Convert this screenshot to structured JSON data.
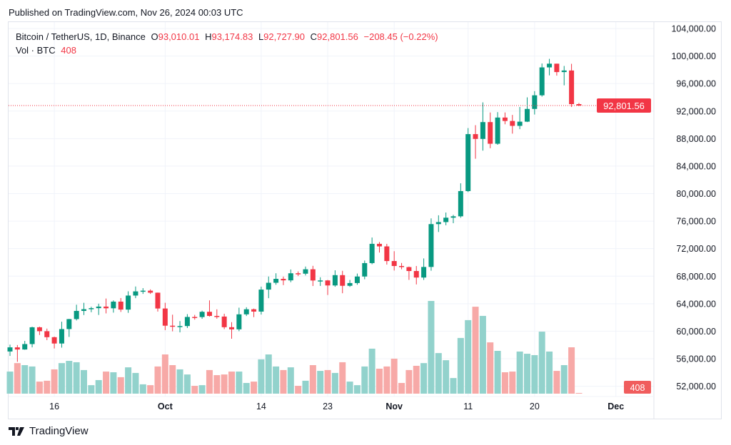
{
  "header": {
    "published": "Published on TradingView.com, Nov 26, 2024 00:03 UTC"
  },
  "legend": {
    "symbol": "Bitcoin / TetherUS, 1D, Binance",
    "o_label": "O",
    "o": "93,010.01",
    "h_label": "H",
    "h": "93,174.83",
    "l_label": "L",
    "l": "92,727.90",
    "c_label": "C",
    "c": "92,801.56",
    "change": "−208.45 (−0.22%)",
    "vol_label": "Vol · BTC",
    "vol": "408"
  },
  "price_tag": "92,801.56",
  "volume_tag": "408",
  "footer": {
    "brand": "TradingView"
  },
  "colors": {
    "up": "#089981",
    "down": "#f23645",
    "up_volume": "#92d2cc",
    "down_volume": "#f7a9a7",
    "grid": "#f0f3fa"
  },
  "chart_data": {
    "type": "candlestick",
    "title": "Bitcoin / TetherUS, 1D, Binance",
    "ylim": [
      50000,
      104000
    ],
    "y_ticks": [
      "104,000.00",
      "100,000.00",
      "96,000.00",
      "92,000.00",
      "88,000.00",
      "84,000.00",
      "80,000.00",
      "76,000.00",
      "72,000.00",
      "68,000.00",
      "64,000.00",
      "60,000.00",
      "56,000.00",
      "52,000.00"
    ],
    "y_tick_values": [
      104000,
      100000,
      96000,
      92000,
      88000,
      84000,
      80000,
      76000,
      72000,
      68000,
      64000,
      60000,
      56000,
      52000
    ],
    "x_ticks": [
      {
        "label": "16",
        "date": "Sep 16"
      },
      {
        "label": "Oct",
        "date": "Oct 1"
      },
      {
        "label": "14",
        "date": "Oct 14"
      },
      {
        "label": "23",
        "date": "Oct 23"
      },
      {
        "label": "Nov",
        "date": "Nov 1"
      },
      {
        "label": "11",
        "date": "Nov 11"
      },
      {
        "label": "20",
        "date": "Nov 20"
      },
      {
        "label": "Dec",
        "date": "Dec 1"
      }
    ],
    "grid": true,
    "columns": [
      "date",
      "open",
      "high",
      "low",
      "close",
      "volume_btc"
    ],
    "candles": [
      [
        "Sep 10",
        57050,
        58050,
        56400,
        57650,
        13000
      ],
      [
        "Sep 11",
        57650,
        57990,
        55550,
        57340,
        18000
      ],
      [
        "Sep 12",
        57340,
        58590,
        57300,
        58130,
        16800
      ],
      [
        "Sep 13",
        58130,
        60650,
        57650,
        60570,
        16000
      ],
      [
        "Sep 14",
        60570,
        60660,
        59450,
        60000,
        7100
      ],
      [
        "Sep 15",
        60000,
        60380,
        58700,
        59130,
        7600
      ],
      [
        "Sep 16",
        59130,
        59210,
        57490,
        58210,
        14300
      ],
      [
        "Sep 17",
        58210,
        61380,
        57610,
        60310,
        18000
      ],
      [
        "Sep 18",
        60310,
        61790,
        59170,
        61760,
        19300
      ],
      [
        "Sep 19",
        61760,
        63850,
        61560,
        62950,
        18500
      ],
      [
        "Sep 20",
        62950,
        64130,
        62350,
        63200,
        13900
      ],
      [
        "Sep 21",
        63200,
        63560,
        62760,
        63350,
        5000
      ],
      [
        "Sep 22",
        63350,
        64000,
        62360,
        63580,
        8000
      ],
      [
        "Sep 23",
        63580,
        64750,
        62590,
        63330,
        13000
      ],
      [
        "Sep 24",
        63330,
        64480,
        62700,
        64300,
        12600
      ],
      [
        "Sep 25",
        64300,
        64820,
        62800,
        63140,
        9700
      ],
      [
        "Sep 26",
        63140,
        65800,
        62670,
        65180,
        15500
      ],
      [
        "Sep 27",
        65180,
        66500,
        64800,
        65790,
        12200
      ],
      [
        "Sep 28",
        65790,
        66260,
        65420,
        65890,
        5500
      ],
      [
        "Sep 29",
        65890,
        66080,
        65420,
        65600,
        5000
      ],
      [
        "Sep 30",
        65600,
        65620,
        62850,
        63300,
        16000
      ],
      [
        "Oct 1",
        63300,
        64130,
        60160,
        60800,
        23100
      ],
      [
        "Oct 2",
        60800,
        62400,
        59980,
        60650,
        16800
      ],
      [
        "Oct 3",
        60650,
        61470,
        59830,
        60750,
        14300
      ],
      [
        "Oct 4",
        60750,
        62480,
        60460,
        62070,
        11300
      ],
      [
        "Oct 5",
        62070,
        62370,
        61680,
        62050,
        4600
      ],
      [
        "Oct 6",
        62050,
        62980,
        61800,
        62820,
        5000
      ],
      [
        "Oct 7",
        62820,
        64480,
        62130,
        62220,
        13900
      ],
      [
        "Oct 8",
        62220,
        63180,
        61820,
        62130,
        10900
      ],
      [
        "Oct 9",
        62130,
        62540,
        60300,
        60580,
        11300
      ],
      [
        "Oct 10",
        60580,
        61320,
        58900,
        60270,
        13000
      ],
      [
        "Oct 11",
        60270,
        63420,
        60000,
        62450,
        13000
      ],
      [
        "Oct 12",
        62450,
        63480,
        62210,
        63190,
        6300
      ],
      [
        "Oct 13",
        63190,
        63290,
        62050,
        62850,
        7100
      ],
      [
        "Oct 14",
        62850,
        66480,
        62420,
        66050,
        20200
      ],
      [
        "Oct 15",
        66050,
        67950,
        64800,
        67040,
        23100
      ],
      [
        "Oct 16",
        67040,
        68420,
        66750,
        67610,
        16000
      ],
      [
        "Oct 17",
        67610,
        67940,
        66700,
        67390,
        13900
      ],
      [
        "Oct 18",
        67390,
        68970,
        67120,
        68420,
        15500
      ],
      [
        "Oct 19",
        68420,
        68690,
        68020,
        68360,
        4600
      ],
      [
        "Oct 20",
        68360,
        69400,
        68100,
        69000,
        7600
      ],
      [
        "Oct 21",
        69000,
        69500,
        66570,
        67370,
        16800
      ],
      [
        "Oct 22",
        67370,
        67840,
        66580,
        67380,
        13400
      ],
      [
        "Oct 23",
        67380,
        67450,
        65260,
        66650,
        13900
      ],
      [
        "Oct 24",
        66650,
        68850,
        66460,
        68150,
        12200
      ],
      [
        "Oct 25",
        68150,
        68780,
        65520,
        66600,
        18500
      ],
      [
        "Oct 26",
        66600,
        67450,
        66440,
        67000,
        7100
      ],
      [
        "Oct 27",
        67000,
        68380,
        66750,
        67950,
        5000
      ],
      [
        "Oct 28",
        67950,
        70270,
        67550,
        69900,
        16000
      ],
      [
        "Oct 29",
        69900,
        73620,
        69730,
        72700,
        26500
      ],
      [
        "Oct 30",
        72700,
        72960,
        71440,
        72330,
        14700
      ],
      [
        "Oct 31",
        72330,
        72700,
        69680,
        70200,
        16000
      ],
      [
        "Nov 1",
        70200,
        71630,
        68820,
        69480,
        20600
      ],
      [
        "Nov 2",
        69480,
        69920,
        69000,
        69320,
        6300
      ],
      [
        "Nov 3",
        69320,
        69400,
        67460,
        68750,
        13900
      ],
      [
        "Nov 4",
        68750,
        69480,
        66800,
        67800,
        16400
      ],
      [
        "Nov 5",
        67800,
        70580,
        67450,
        69340,
        18000
      ],
      [
        "Nov 6",
        69340,
        76400,
        68790,
        75570,
        54600
      ],
      [
        "Nov 7",
        75570,
        76850,
        74420,
        75860,
        23900
      ],
      [
        "Nov 8",
        75860,
        77250,
        75400,
        76500,
        19700
      ],
      [
        "Nov 9",
        76500,
        76920,
        75700,
        76700,
        9200
      ],
      [
        "Nov 10",
        76700,
        81500,
        76490,
        80370,
        32800
      ],
      [
        "Nov 11",
        80370,
        89530,
        80220,
        88650,
        43300
      ],
      [
        "Nov 12",
        88650,
        89950,
        85070,
        87950,
        51200
      ],
      [
        "Nov 13",
        87950,
        93270,
        86250,
        90400,
        45800
      ],
      [
        "Nov 14",
        90400,
        91800,
        86600,
        87250,
        30200
      ],
      [
        "Nov 15",
        87250,
        91850,
        87100,
        91060,
        25200
      ],
      [
        "Nov 16",
        91060,
        91800,
        90080,
        90560,
        12600
      ],
      [
        "Nov 17",
        90560,
        91440,
        88720,
        89850,
        13000
      ],
      [
        "Nov 18",
        89850,
        92600,
        89370,
        90460,
        24800
      ],
      [
        "Nov 19",
        90460,
        94000,
        90400,
        92310,
        23500
      ],
      [
        "Nov 20",
        92310,
        94900,
        91500,
        94290,
        22700
      ],
      [
        "Nov 21",
        94290,
        98920,
        94100,
        98350,
        36500
      ],
      [
        "Nov 22",
        98350,
        99590,
        97190,
        98890,
        24800
      ],
      [
        "Nov 23",
        98890,
        98890,
        97150,
        97670,
        13400
      ],
      [
        "Nov 24",
        97670,
        98560,
        95740,
        97900,
        16800
      ],
      [
        "Nov 25",
        97900,
        98870,
        92600,
        93010,
        27300
      ],
      [
        "Nov 26",
        93010.01,
        93174.83,
        92727.9,
        92801.56,
        408
      ]
    ]
  }
}
